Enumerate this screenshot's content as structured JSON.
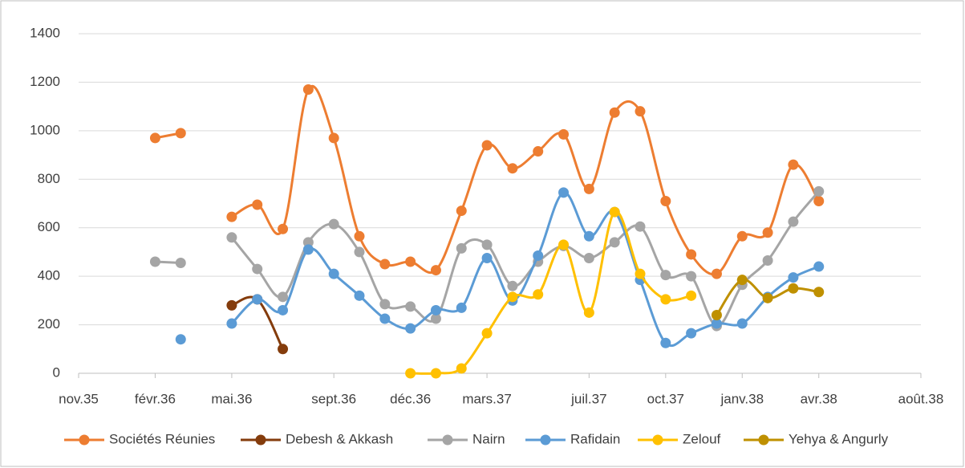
{
  "chart_data": {
    "type": "line",
    "x": [
      "1936-02",
      "1936-03",
      "1936-04",
      "1936-05",
      "1936-06",
      "1936-07",
      "1936-08",
      "1936-09",
      "1936-10",
      "1936-11",
      "1936-12",
      "1937-01",
      "1937-02",
      "1937-03",
      "1937-04",
      "1937-05",
      "1937-06",
      "1937-07",
      "1937-08",
      "1937-09",
      "1937-10",
      "1937-11",
      "1937-12",
      "1938-01",
      "1938-02",
      "1938-03",
      "1938-04"
    ],
    "series": [
      {
        "name": "Sociétés Réunies",
        "color": "#ED7D31",
        "values": [
          970,
          990,
          null,
          645,
          695,
          595,
          1170,
          970,
          565,
          450,
          460,
          425,
          670,
          940,
          845,
          915,
          985,
          760,
          1075,
          1080,
          710,
          490,
          410,
          565,
          580,
          860,
          710
        ]
      },
      {
        "name": "Debesh & Akkash",
        "color": "#843C0C",
        "values": [
          null,
          null,
          null,
          280,
          305,
          100,
          null,
          null,
          null,
          null,
          null,
          null,
          null,
          null,
          null,
          null,
          null,
          null,
          null,
          null,
          null,
          null,
          null,
          null,
          null,
          null,
          null
        ]
      },
      {
        "name": "Nairn",
        "color": "#A5A5A5",
        "values": [
          460,
          455,
          null,
          560,
          430,
          315,
          540,
          615,
          500,
          285,
          275,
          225,
          515,
          530,
          360,
          460,
          525,
          475,
          540,
          605,
          405,
          400,
          195,
          365,
          465,
          625,
          750
        ]
      },
      {
        "name": "Rafidain",
        "color": "#5B9BD5",
        "values": [
          null,
          140,
          null,
          205,
          305,
          260,
          510,
          410,
          320,
          225,
          185,
          260,
          270,
          475,
          300,
          485,
          745,
          565,
          665,
          385,
          125,
          165,
          205,
          205,
          315,
          395,
          440
        ]
      },
      {
        "name": "Zelouf",
        "color": "#FFC000",
        "values": [
          null,
          null,
          null,
          null,
          null,
          null,
          null,
          null,
          null,
          null,
          0,
          0,
          20,
          165,
          315,
          325,
          530,
          250,
          665,
          410,
          305,
          320,
          null,
          null,
          null,
          null,
          null
        ]
      },
      {
        "name": "Yehya & Angurly",
        "color": "#BF9000",
        "values": [
          null,
          null,
          null,
          null,
          null,
          null,
          null,
          null,
          null,
          null,
          null,
          null,
          null,
          null,
          null,
          null,
          null,
          null,
          null,
          null,
          null,
          null,
          240,
          385,
          310,
          350,
          335
        ]
      }
    ],
    "xlim": [
      "1935-11",
      "1938-08"
    ],
    "xticks": [
      {
        "value": "1935-11",
        "label": "nov.35"
      },
      {
        "value": "1936-02",
        "label": "févr.36"
      },
      {
        "value": "1936-05",
        "label": "mai.36"
      },
      {
        "value": "1936-09",
        "label": "sept.36"
      },
      {
        "value": "1936-12",
        "label": "déc.36"
      },
      {
        "value": "1937-03",
        "label": "mars.37"
      },
      {
        "value": "1937-07",
        "label": "juil.37"
      },
      {
        "value": "1937-10",
        "label": "oct.37"
      },
      {
        "value": "1938-01",
        "label": "janv.38"
      },
      {
        "value": "1938-04",
        "label": "avr.38"
      },
      {
        "value": "1938-08",
        "label": "août.38"
      }
    ],
    "ylim": [
      0,
      1400
    ],
    "yticks": [
      0,
      200,
      400,
      600,
      800,
      1000,
      1200,
      1400
    ],
    "grid": true
  }
}
